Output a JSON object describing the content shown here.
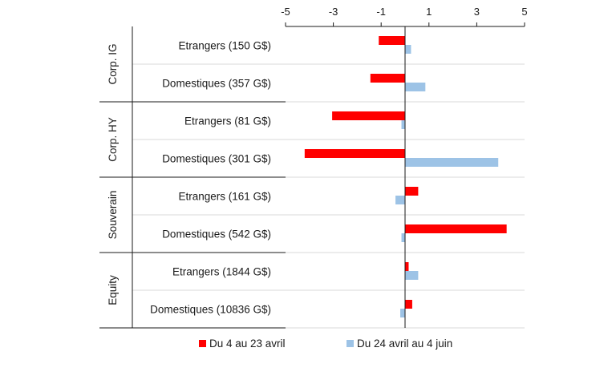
{
  "chart_data": {
    "type": "bar",
    "orientation": "horizontal",
    "xlim": [
      -5,
      5
    ],
    "x_ticks": [
      -5,
      -3,
      -1,
      1,
      3,
      5
    ],
    "x_tick_labels": [
      "-5",
      "-3",
      "-1",
      "1",
      "3",
      "5"
    ],
    "x_axis_position": "top",
    "grid": "horizontal separators between categories",
    "legend_placement": "bottom",
    "groups": [
      {
        "label": "Corp. IG",
        "categories": [
          "Etrangers (150 G$)",
          "Domestiques (357 G$)"
        ]
      },
      {
        "label": "Corp. HY",
        "categories": [
          "Etrangers (81 G$)",
          "Domestiques (301 G$)"
        ]
      },
      {
        "label": "Souverain",
        "categories": [
          "Etrangers (161 G$)",
          "Domestiques (542 G$)"
        ]
      },
      {
        "label": "Equity",
        "categories": [
          "Etrangers (1844 G$)",
          "Domestiques (10836 G$)"
        ]
      }
    ],
    "series": [
      {
        "name": "Du 4 au 23 avril",
        "color": "#ff0000",
        "values": [
          -1.1,
          -1.45,
          -3.05,
          -4.2,
          0.55,
          4.25,
          0.15,
          0.3
        ]
      },
      {
        "name": "Du 24 avril au 4 juin",
        "color": "#9dc3e6",
        "values": [
          0.25,
          0.85,
          -0.15,
          3.9,
          -0.4,
          -0.15,
          0.55,
          -0.2
        ]
      }
    ]
  }
}
